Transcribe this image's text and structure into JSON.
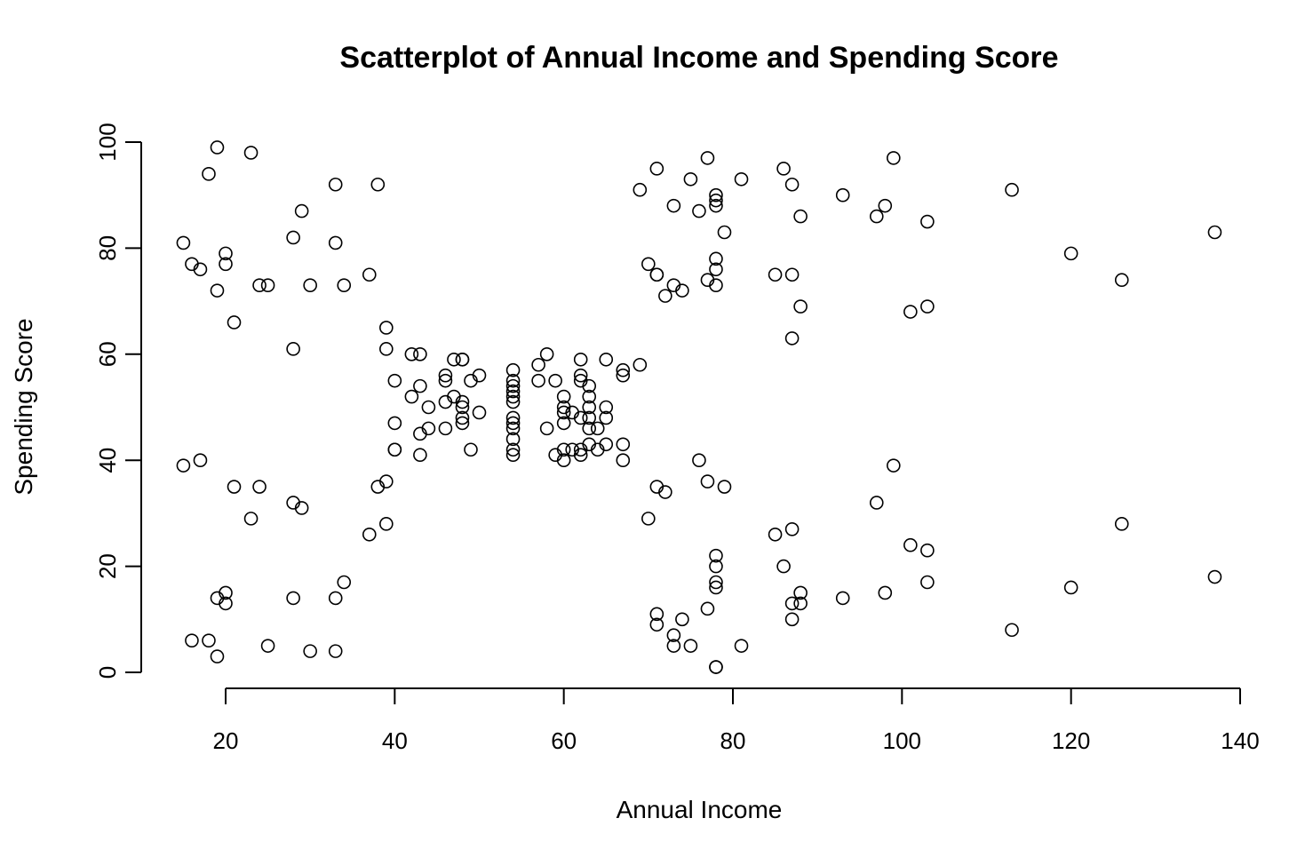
{
  "chart_data": {
    "type": "scatter",
    "title": "Scatterplot of Annual Income and Spending Score",
    "xlabel": "Annual Income",
    "ylabel": "Spending Score",
    "xlim": [
      10,
      140
    ],
    "ylim": [
      0,
      100
    ],
    "xticks": [
      "20",
      "40",
      "60",
      "80",
      "100",
      "120",
      "140"
    ],
    "yticks": [
      "0",
      "20",
      "40",
      "60",
      "80",
      "100"
    ],
    "grid": false,
    "marker": "open-circle",
    "color": "#000000",
    "points": [
      [
        15,
        39
      ],
      [
        15,
        81
      ],
      [
        16,
        6
      ],
      [
        16,
        77
      ],
      [
        17,
        40
      ],
      [
        17,
        76
      ],
      [
        18,
        6
      ],
      [
        18,
        94
      ],
      [
        19,
        3
      ],
      [
        19,
        72
      ],
      [
        19,
        14
      ],
      [
        19,
        99
      ],
      [
        20,
        15
      ],
      [
        20,
        77
      ],
      [
        20,
        13
      ],
      [
        20,
        79
      ],
      [
        21,
        35
      ],
      [
        21,
        66
      ],
      [
        23,
        29
      ],
      [
        23,
        98
      ],
      [
        24,
        35
      ],
      [
        24,
        73
      ],
      [
        25,
        5
      ],
      [
        25,
        73
      ],
      [
        28,
        14
      ],
      [
        28,
        82
      ],
      [
        28,
        32
      ],
      [
        28,
        61
      ],
      [
        29,
        31
      ],
      [
        29,
        87
      ],
      [
        30,
        4
      ],
      [
        30,
        73
      ],
      [
        33,
        4
      ],
      [
        33,
        92
      ],
      [
        33,
        14
      ],
      [
        33,
        81
      ],
      [
        34,
        17
      ],
      [
        34,
        73
      ],
      [
        37,
        26
      ],
      [
        37,
        75
      ],
      [
        38,
        35
      ],
      [
        38,
        92
      ],
      [
        39,
        36
      ],
      [
        39,
        61
      ],
      [
        39,
        28
      ],
      [
        39,
        65
      ],
      [
        40,
        55
      ],
      [
        40,
        47
      ],
      [
        40,
        42
      ],
      [
        40,
        42
      ],
      [
        42,
        52
      ],
      [
        42,
        60
      ],
      [
        43,
        54
      ],
      [
        43,
        60
      ],
      [
        43,
        45
      ],
      [
        43,
        41
      ],
      [
        44,
        50
      ],
      [
        44,
        46
      ],
      [
        46,
        51
      ],
      [
        46,
        46
      ],
      [
        46,
        56
      ],
      [
        46,
        55
      ],
      [
        47,
        52
      ],
      [
        47,
        59
      ],
      [
        48,
        51
      ],
      [
        48,
        59
      ],
      [
        48,
        50
      ],
      [
        48,
        48
      ],
      [
        48,
        59
      ],
      [
        48,
        47
      ],
      [
        49,
        55
      ],
      [
        49,
        42
      ],
      [
        50,
        49
      ],
      [
        50,
        56
      ],
      [
        54,
        47
      ],
      [
        54,
        54
      ],
      [
        54,
        53
      ],
      [
        54,
        48
      ],
      [
        54,
        52
      ],
      [
        54,
        42
      ],
      [
        54,
        51
      ],
      [
        54,
        55
      ],
      [
        54,
        41
      ],
      [
        54,
        44
      ],
      [
        54,
        57
      ],
      [
        54,
        46
      ],
      [
        57,
        58
      ],
      [
        57,
        55
      ],
      [
        58,
        60
      ],
      [
        58,
        46
      ],
      [
        59,
        55
      ],
      [
        59,
        41
      ],
      [
        60,
        49
      ],
      [
        60,
        40
      ],
      [
        60,
        42
      ],
      [
        60,
        52
      ],
      [
        60,
        47
      ],
      [
        60,
        50
      ],
      [
        61,
        42
      ],
      [
        61,
        49
      ],
      [
        62,
        41
      ],
      [
        62,
        48
      ],
      [
        62,
        59
      ],
      [
        62,
        55
      ],
      [
        62,
        56
      ],
      [
        62,
        42
      ],
      [
        63,
        50
      ],
      [
        63,
        46
      ],
      [
        63,
        43
      ],
      [
        63,
        48
      ],
      [
        63,
        52
      ],
      [
        63,
        54
      ],
      [
        64,
        42
      ],
      [
        64,
        46
      ],
      [
        65,
        48
      ],
      [
        65,
        50
      ],
      [
        65,
        43
      ],
      [
        65,
        59
      ],
      [
        67,
        43
      ],
      [
        67,
        57
      ],
      [
        67,
        56
      ],
      [
        67,
        40
      ],
      [
        69,
        58
      ],
      [
        69,
        91
      ],
      [
        70,
        29
      ],
      [
        70,
        77
      ],
      [
        71,
        35
      ],
      [
        71,
        95
      ],
      [
        71,
        11
      ],
      [
        71,
        75
      ],
      [
        71,
        9
      ],
      [
        71,
        75
      ],
      [
        72,
        34
      ],
      [
        72,
        71
      ],
      [
        73,
        5
      ],
      [
        73,
        88
      ],
      [
        73,
        7
      ],
      [
        73,
        73
      ],
      [
        74,
        10
      ],
      [
        74,
        72
      ],
      [
        75,
        5
      ],
      [
        75,
        93
      ],
      [
        76,
        40
      ],
      [
        76,
        87
      ],
      [
        77,
        12
      ],
      [
        77,
        97
      ],
      [
        77,
        36
      ],
      [
        77,
        74
      ],
      [
        78,
        22
      ],
      [
        78,
        90
      ],
      [
        78,
        17
      ],
      [
        78,
        88
      ],
      [
        78,
        20
      ],
      [
        78,
        76
      ],
      [
        78,
        16
      ],
      [
        78,
        89
      ],
      [
        78,
        1
      ],
      [
        78,
        78
      ],
      [
        78,
        1
      ],
      [
        78,
        73
      ],
      [
        79,
        35
      ],
      [
        79,
        83
      ],
      [
        81,
        5
      ],
      [
        81,
        93
      ],
      [
        85,
        26
      ],
      [
        85,
        75
      ],
      [
        86,
        20
      ],
      [
        86,
        95
      ],
      [
        87,
        27
      ],
      [
        87,
        63
      ],
      [
        87,
        13
      ],
      [
        87,
        75
      ],
      [
        87,
        10
      ],
      [
        87,
        92
      ],
      [
        88,
        13
      ],
      [
        88,
        86
      ],
      [
        88,
        15
      ],
      [
        88,
        69
      ],
      [
        93,
        14
      ],
      [
        93,
        90
      ],
      [
        97,
        32
      ],
      [
        97,
        86
      ],
      [
        98,
        15
      ],
      [
        98,
        88
      ],
      [
        99,
        39
      ],
      [
        99,
        97
      ],
      [
        101,
        24
      ],
      [
        101,
        68
      ],
      [
        103,
        17
      ],
      [
        103,
        85
      ],
      [
        103,
        23
      ],
      [
        103,
        69
      ],
      [
        113,
        8
      ],
      [
        113,
        91
      ],
      [
        120,
        16
      ],
      [
        120,
        79
      ],
      [
        126,
        28
      ],
      [
        126,
        74
      ],
      [
        137,
        18
      ],
      [
        137,
        83
      ]
    ]
  }
}
